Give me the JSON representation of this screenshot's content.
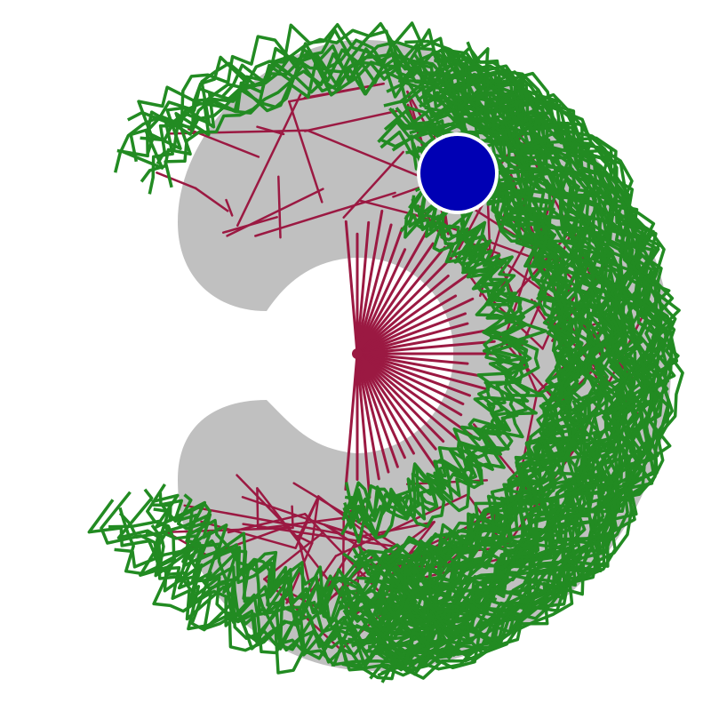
{
  "colors": {
    "background": "#ffffff",
    "region": "#c0c0c0",
    "free_space": "#ffffff",
    "tree_edges": "#9b1942",
    "path": "#228b22",
    "goal": "#0000b4"
  },
  "shapes": {
    "region": "c-shaped-ring",
    "start": "fan-center",
    "goal": "blue-disc"
  }
}
